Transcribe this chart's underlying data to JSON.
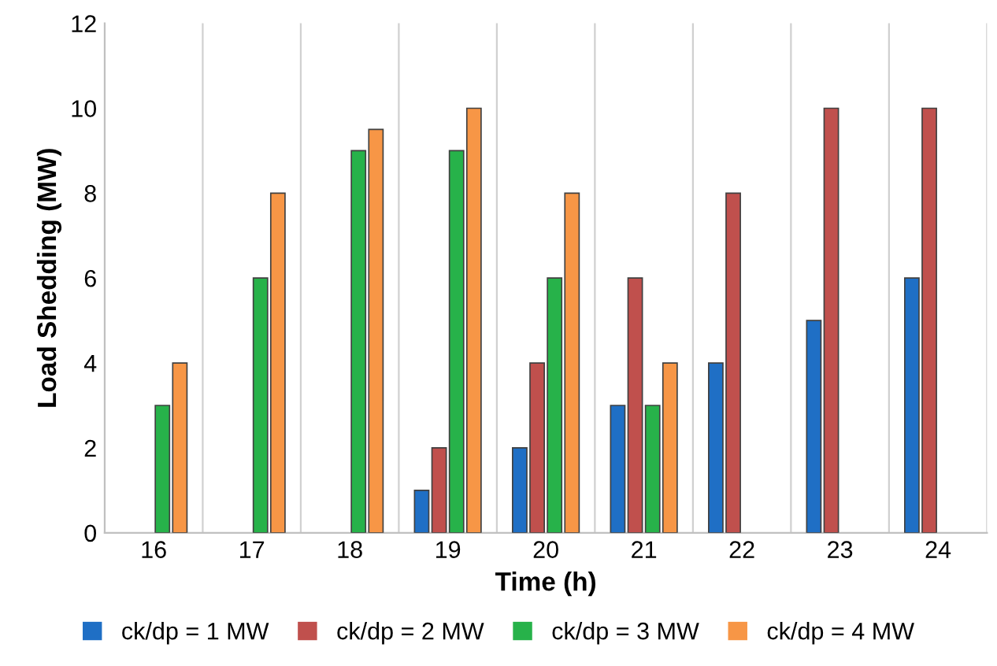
{
  "chart_data": {
    "type": "bar",
    "xlabel": "Time (h)",
    "ylabel": "Load Shedding (MW)",
    "categories": [
      "16",
      "17",
      "18",
      "19",
      "20",
      "21",
      "22",
      "23",
      "24"
    ],
    "series": [
      {
        "name": "ck/dp = 1 MW",
        "color": "#1f6fc5",
        "values": [
          0,
          0,
          0,
          1,
          2,
          3,
          4,
          5,
          6
        ]
      },
      {
        "name": "ck/dp = 2 MW",
        "color": "#c0504d",
        "values": [
          0,
          0,
          0,
          2,
          4,
          6,
          8,
          10,
          10
        ]
      },
      {
        "name": "ck/dp = 3 MW",
        "color": "#27b24a",
        "values": [
          3,
          6,
          9,
          9,
          6,
          3,
          0,
          0,
          0
        ]
      },
      {
        "name": "ck/dp = 4 MW",
        "color": "#f79646",
        "values": [
          4,
          8,
          9.5,
          10,
          8,
          4,
          0,
          0,
          0
        ]
      }
    ],
    "ylim": [
      0,
      12
    ],
    "yticks": [
      0,
      2,
      4,
      6,
      8,
      10,
      12
    ],
    "grid": "x",
    "legend": "bottom"
  }
}
